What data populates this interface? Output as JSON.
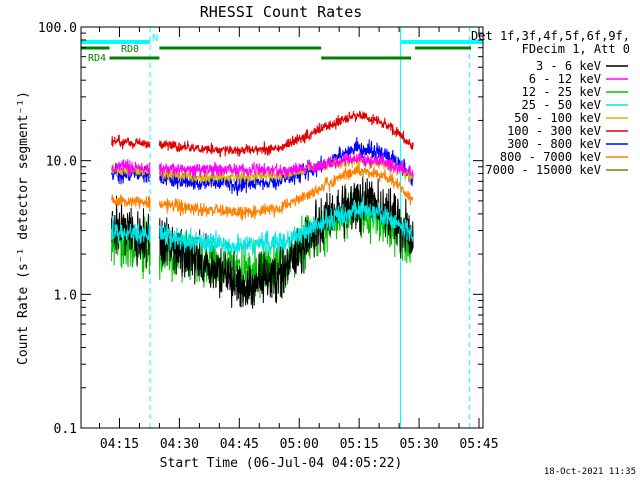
{
  "chart_data": {
    "type": "line",
    "title": "RHESSI Count Rates",
    "xlabel": "Start Time (06-Jul-04 04:05:22)",
    "ylabel": "Count Rate (s⁻¹ detector segment⁻¹)",
    "yscale": "log",
    "ylim": [
      0.1,
      100.0
    ],
    "xlim": [
      "04:05:22",
      "05:46:00"
    ],
    "yticks": [
      "0.1",
      "1.0",
      "10.0",
      "100.0"
    ],
    "xticks": [
      "04:15",
      "04:30",
      "04:45",
      "05:00",
      "05:15",
      "05:30",
      "05:45"
    ],
    "legend_title": [
      "Det 1f,3f,4f,5f,6f,9f,",
      "FDecim 1, Att 0"
    ],
    "legend_placement": "right",
    "timestamp": "18-Oct-2021 11:35",
    "series": [
      {
        "name": "3 - 6 keV",
        "color": "#000000",
        "noise": 0.14,
        "x": [
          "04:13:00",
          "04:20:00",
          "04:30:00",
          "04:40:00",
          "04:45:00",
          "04:55:00",
          "05:05:00",
          "05:14:00",
          "05:20:00",
          "05:25:00",
          "05:28:30"
        ],
        "values": [
          3.2,
          2.8,
          2.2,
          1.5,
          1.2,
          1.4,
          3.3,
          5.0,
          4.5,
          3.5,
          2.6
        ]
      },
      {
        "name": "6 - 12 keV",
        "color": "#ff00ff",
        "noise": 0.035,
        "x": [
          "04:13:00",
          "04:20:00",
          "04:30:00",
          "04:40:00",
          "04:45:00",
          "04:55:00",
          "05:05:00",
          "05:14:00",
          "05:20:00",
          "05:25:00",
          "05:28:30"
        ],
        "values": [
          9.0,
          8.8,
          8.6,
          8.5,
          8.5,
          8.5,
          9.0,
          10.5,
          10.0,
          9.0,
          8.0
        ]
      },
      {
        "name": "12 - 25 keV",
        "color": "#00c000",
        "noise": 0.14,
        "x": [
          "04:13:00",
          "04:20:00",
          "04:30:00",
          "04:40:00",
          "04:45:00",
          "04:55:00",
          "05:05:00",
          "05:14:00",
          "05:20:00",
          "05:25:00",
          "05:28:30"
        ],
        "values": [
          2.4,
          2.2,
          1.9,
          1.6,
          1.5,
          1.6,
          3.0,
          4.3,
          3.8,
          3.0,
          2.2
        ]
      },
      {
        "name": "25 - 50 keV",
        "color": "#00e6e6",
        "noise": 0.06,
        "x": [
          "04:13:00",
          "04:20:00",
          "04:30:00",
          "04:40:00",
          "04:45:00",
          "04:55:00",
          "05:05:00",
          "05:14:00",
          "05:20:00",
          "05:25:00",
          "05:28:30"
        ],
        "values": [
          3.0,
          2.9,
          2.6,
          2.4,
          2.3,
          2.4,
          3.3,
          4.3,
          4.0,
          3.3,
          2.8
        ]
      },
      {
        "name": "50 - 100 keV",
        "color": "#d8b800",
        "noise": 0.03,
        "x": [
          "04:13:00",
          "04:20:00",
          "04:30:00",
          "04:40:00",
          "04:45:00",
          "04:55:00",
          "05:05:00",
          "05:14:00",
          "05:20:00",
          "05:25:00",
          "05:28:30"
        ],
        "values": [
          8.5,
          8.2,
          7.8,
          7.5,
          7.5,
          7.8,
          9.0,
          10.0,
          9.5,
          8.5,
          7.5
        ]
      },
      {
        "name": "100 - 300 keV",
        "color": "#e00000",
        "noise": 0.03,
        "x": [
          "04:13:00",
          "04:20:00",
          "04:30:00",
          "04:40:00",
          "04:45:00",
          "04:55:00",
          "05:05:00",
          "05:14:00",
          "05:20:00",
          "05:25:00",
          "05:28:30"
        ],
        "values": [
          14.0,
          13.5,
          12.8,
          12.0,
          11.8,
          12.5,
          17.0,
          22.0,
          20.0,
          16.0,
          12.5
        ]
      },
      {
        "name": "300 - 800 keV",
        "color": "#0000ff",
        "noise": 0.045,
        "x": [
          "04:13:00",
          "04:20:00",
          "04:30:00",
          "04:40:00",
          "04:45:00",
          "04:55:00",
          "05:05:00",
          "05:14:00",
          "05:20:00",
          "05:25:00",
          "05:28:30"
        ],
        "values": [
          8.0,
          7.8,
          7.2,
          6.8,
          6.6,
          7.0,
          9.0,
          12.5,
          11.5,
          9.5,
          7.0
        ]
      },
      {
        "name": "800 - 7000 keV",
        "color": "#ff8000",
        "noise": 0.035,
        "x": [
          "04:13:00",
          "04:20:00",
          "04:30:00",
          "04:40:00",
          "04:45:00",
          "04:55:00",
          "05:05:00",
          "05:14:00",
          "05:20:00",
          "05:25:00",
          "05:28:30"
        ],
        "values": [
          5.0,
          4.9,
          4.5,
          4.2,
          4.1,
          4.4,
          6.2,
          8.5,
          8.0,
          6.5,
          5.0
        ]
      },
      {
        "name": "7000 - 15000 keV",
        "color": "#808000",
        "noise": 0.0,
        "x": [],
        "values": []
      }
    ],
    "gaps": [
      {
        "label": "",
        "start": "04:22:40",
        "end": "04:25:00"
      },
      {
        "label": "",
        "start": "05:28:30",
        "end": "05:30:00"
      }
    ],
    "flags": [
      {
        "label": "",
        "color": "#00ffff",
        "y_level": 1,
        "segments": [
          [
            "04:05:22",
            "04:22:40"
          ],
          [
            "05:25:30",
            "05:46:00"
          ]
        ]
      },
      {
        "label": "RD0",
        "color": "#008000",
        "y_level": 2,
        "segments": [
          [
            "04:05:22",
            "04:12:30"
          ],
          [
            "04:25:00",
            "05:05:30"
          ],
          [
            "05:29:00",
            "05:43:00"
          ]
        ]
      },
      {
        "label": "RD4",
        "color": "#008000",
        "y_level": 3,
        "segments": [
          [
            "04:12:30",
            "04:25:00"
          ],
          [
            "05:05:30",
            "05:28:00"
          ]
        ]
      }
    ],
    "flag_markers": [
      {
        "label": "N",
        "at": "04:22:40",
        "color": "#00ffff"
      }
    ],
    "vlines": [
      {
        "at": "04:05:22",
        "color": "#00ffff",
        "dashed": false
      },
      {
        "at": "04:22:40",
        "color": "#00ffff",
        "dashed": true
      },
      {
        "at": "05:25:20",
        "color": "#00ffff",
        "dashed": false
      },
      {
        "at": "05:42:40",
        "color": "#00ffff",
        "dashed": true
      }
    ]
  }
}
